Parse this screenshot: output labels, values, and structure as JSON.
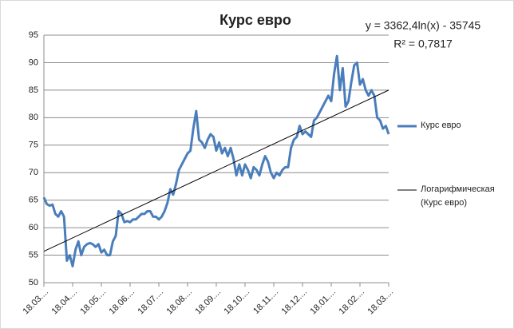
{
  "chart_data": {
    "type": "line",
    "title": "Курс евро",
    "categories": [
      "18.03....",
      null,
      null,
      null,
      null,
      null,
      null,
      null,
      null,
      null,
      "18.04....",
      null,
      null,
      null,
      null,
      null,
      null,
      null,
      null,
      null,
      "18.05....",
      null,
      null,
      null,
      null,
      null,
      null,
      null,
      null,
      null,
      "18.06....",
      null,
      null,
      null,
      null,
      null,
      null,
      null,
      null,
      null,
      "18.07....",
      null,
      null,
      null,
      null,
      null,
      null,
      null,
      null,
      null,
      "18.08....",
      null,
      null,
      null,
      null,
      null,
      null,
      null,
      null,
      null,
      "18.09....",
      null,
      null,
      null,
      null,
      null,
      null,
      null,
      null,
      null,
      "18.10....",
      null,
      null,
      null,
      null,
      null,
      null,
      null,
      null,
      null,
      "18.11....",
      null,
      null,
      null,
      null,
      null,
      null,
      null,
      null,
      null,
      "18.12....",
      null,
      null,
      null,
      null,
      null,
      null,
      null,
      null,
      null,
      "18.01....",
      null,
      null,
      null,
      null,
      null,
      null,
      null,
      null,
      null,
      "18.02....",
      null,
      null,
      null,
      null,
      null,
      null,
      null,
      null,
      null,
      "18.03...."
    ],
    "series": [
      {
        "name": "Курс евро",
        "color": "#4a7ebb",
        "values": [
          65.5,
          64.3,
          64,
          64.2,
          62.5,
          62,
          63,
          62,
          54,
          55,
          53,
          56,
          57.5,
          55,
          56.5,
          57,
          57.2,
          57,
          56.5,
          57,
          55.5,
          56,
          55,
          55,
          57.5,
          58.5,
          63,
          62.5,
          61,
          61.2,
          61,
          61.5,
          61.5,
          62,
          62.5,
          62.5,
          63,
          63,
          62,
          62,
          61.5,
          62,
          63,
          64.5,
          67,
          66,
          68,
          70.5,
          71.5,
          72.5,
          73.5,
          74,
          78,
          81.2,
          76,
          75.5,
          74.5,
          76,
          77,
          76.5,
          74,
          75.5,
          73.5,
          74.5,
          73,
          74.5,
          72.5,
          69.5,
          71.5,
          69.5,
          71.5,
          70.5,
          69,
          71,
          70.5,
          69.5,
          71.5,
          73,
          72,
          70,
          69,
          70,
          69.5,
          70.5,
          71,
          71,
          74.5,
          76,
          76.5,
          78.5,
          77,
          77.5,
          77,
          76.5,
          79.5,
          80,
          81,
          82,
          83,
          84,
          83,
          88,
          91.2,
          85,
          89,
          82,
          83,
          86.5,
          89.5,
          90,
          86,
          87,
          85,
          84,
          85,
          84,
          80,
          79.5,
          78,
          78.5,
          77
        ]
      }
    ],
    "trendline": {
      "name": "Логарифмическая (Курс евро)",
      "color": "#000000",
      "start": 55.7,
      "end": 85,
      "equation": "y = 3362,4ln(x) - 35745",
      "r_squared": "R² = 0,7817"
    },
    "ylim": [
      50,
      95
    ],
    "yticks": [
      50,
      55,
      60,
      65,
      70,
      75,
      80,
      85,
      90,
      95
    ],
    "grid": true
  }
}
